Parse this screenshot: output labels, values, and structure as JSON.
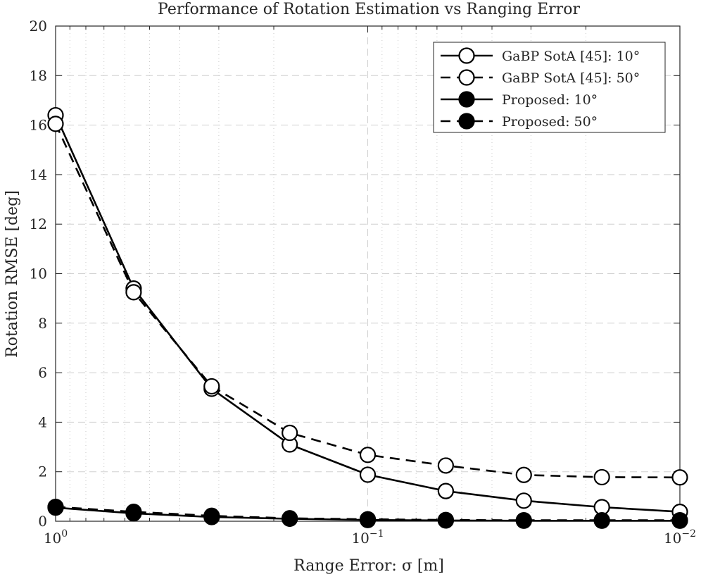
{
  "chart_data": {
    "type": "line",
    "title": "Performance of Rotation Estimation vs Ranging Error",
    "xlabel": "Range Error: σ [m]",
    "ylabel": "Rotation RMSE [deg]",
    "x_scale": "log",
    "x_reversed": true,
    "xlim": [
      1,
      0.01
    ],
    "ylim": [
      0,
      20
    ],
    "x_ticks": [
      {
        "base": "10",
        "exp": "0",
        "value": 1
      },
      {
        "base": "10",
        "exp": "−1",
        "value": 0.1
      },
      {
        "base": "10",
        "exp": "−2",
        "value": 0.01
      }
    ],
    "y_ticks": [
      "0",
      "2",
      "4",
      "6",
      "8",
      "10",
      "12",
      "14",
      "16",
      "18",
      "20"
    ],
    "grid": true,
    "minor_grid": true,
    "legend_position": "top-right",
    "x": [
      1,
      0.5623,
      0.3162,
      0.1778,
      0.1,
      0.05623,
      0.03162,
      0.01778,
      0.01
    ],
    "series": [
      {
        "name": "GaBP SotA [45]: 10°",
        "line": "solid",
        "marker": "open-circle",
        "values": [
          16.4,
          9.4,
          5.35,
          3.1,
          1.88,
          1.22,
          0.83,
          0.57,
          0.38
        ]
      },
      {
        "name": "GaBP SotA [45]: 50°",
        "line": "dashed",
        "marker": "open-circle",
        "values": [
          16.05,
          9.25,
          5.45,
          3.57,
          2.68,
          2.25,
          1.87,
          1.78,
          1.77
        ]
      },
      {
        "name": "Proposed: 10°",
        "line": "solid",
        "marker": "filled-circle",
        "values": [
          0.55,
          0.32,
          0.17,
          0.1,
          0.05,
          0.03,
          0.02,
          0.02,
          0.02
        ]
      },
      {
        "name": "Proposed: 50°",
        "line": "dashed",
        "marker": "filled-circle",
        "values": [
          0.58,
          0.38,
          0.22,
          0.12,
          0.08,
          0.05,
          0.04,
          0.04,
          0.04
        ]
      }
    ]
  }
}
